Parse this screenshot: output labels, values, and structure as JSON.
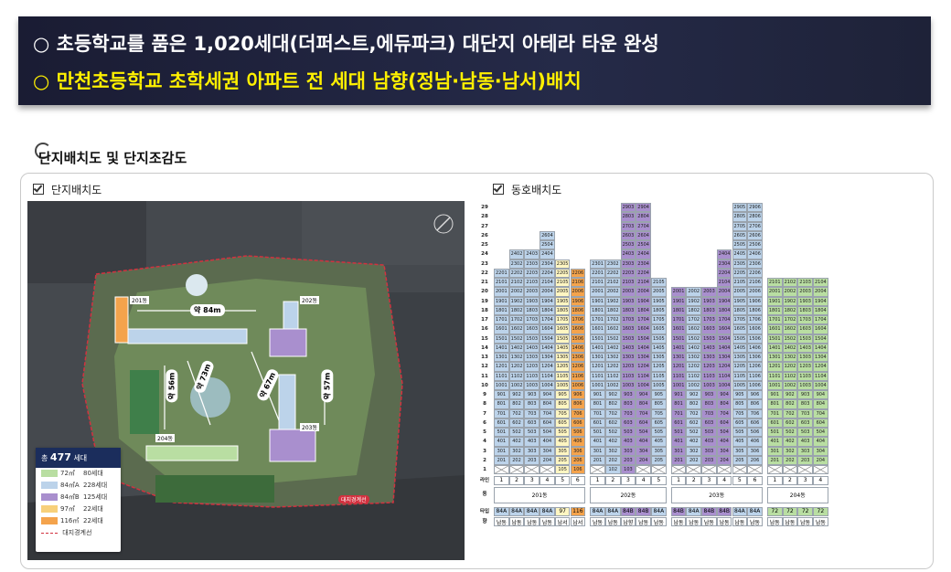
{
  "banner": {
    "line1": "○ 초등학교를 품은 1,020세대(더퍼스트,에듀파크) 대단지 아테라 타운 완성",
    "line2": "○ 만천초등학교 초학세권 아파트 전 세대 남향(정남·남동·남서)배치"
  },
  "section": {
    "title": "단지배치도 및 단지조감도",
    "left_title": "단지배치도",
    "right_title": "동호배치도"
  },
  "map": {
    "labels": {
      "d84": "약 84m",
      "d56": "약 56m",
      "d73": "약 73m",
      "d67": "약 67m",
      "d57": "약 57m",
      "b201": "201동",
      "b202": "202동",
      "b203": "203동",
      "b204": "204동",
      "boundary": "대지경계선"
    },
    "legend": {
      "total_prefix": "총",
      "total": "477",
      "total_suffix": "세대",
      "items": [
        {
          "type": "72㎡",
          "count": "80세대",
          "color": "#b9dea2"
        },
        {
          "type": "84㎡A",
          "count": "228세대",
          "color": "#bcd3ea"
        },
        {
          "type": "84㎡B",
          "count": "125세대",
          "color": "#a98fce"
        },
        {
          "type": "97㎡",
          "count": "22세대",
          "color": "#f7d07a"
        },
        {
          "type": "116㎡",
          "count": "22세대",
          "color": "#f4a34c"
        }
      ],
      "boundary_label": "대지경계선"
    }
  },
  "grid": {
    "header_line": "라인",
    "header_dong": "동",
    "header_type": "타입",
    "header_dir": "향",
    "buildings": [
      {
        "name": "201동",
        "lines": [
          "1",
          "2",
          "3",
          "4",
          "5",
          "6"
        ],
        "types": [
          "84A",
          "84A",
          "84A",
          "84A",
          "97",
          "116"
        ],
        "dirs": [
          "남동",
          "남동",
          "남동",
          "남동",
          "남서",
          "남서"
        ]
      },
      {
        "name": "202동",
        "lines": [
          "1",
          "2",
          "3",
          "4",
          "5"
        ],
        "types": [
          "84A",
          "84A",
          "84B",
          "84B",
          "84A"
        ],
        "dirs": [
          "남동",
          "남동",
          "남향",
          "남동",
          "남동"
        ]
      },
      {
        "name": "203동",
        "lines": [
          "1",
          "2",
          "3",
          "4",
          "5",
          "6"
        ],
        "types": [
          "84B",
          "84A",
          "84B",
          "84B",
          "84A",
          "84A"
        ],
        "dirs": [
          "남동",
          "남동",
          "남동",
          "남동",
          "남동",
          "남동"
        ]
      },
      {
        "name": "204동",
        "lines": [
          "1",
          "2",
          "3",
          "4"
        ],
        "types": [
          "72",
          "72",
          "72",
          "72"
        ],
        "dirs": [
          "남동",
          "남동",
          "남동",
          "남동"
        ]
      }
    ]
  }
}
